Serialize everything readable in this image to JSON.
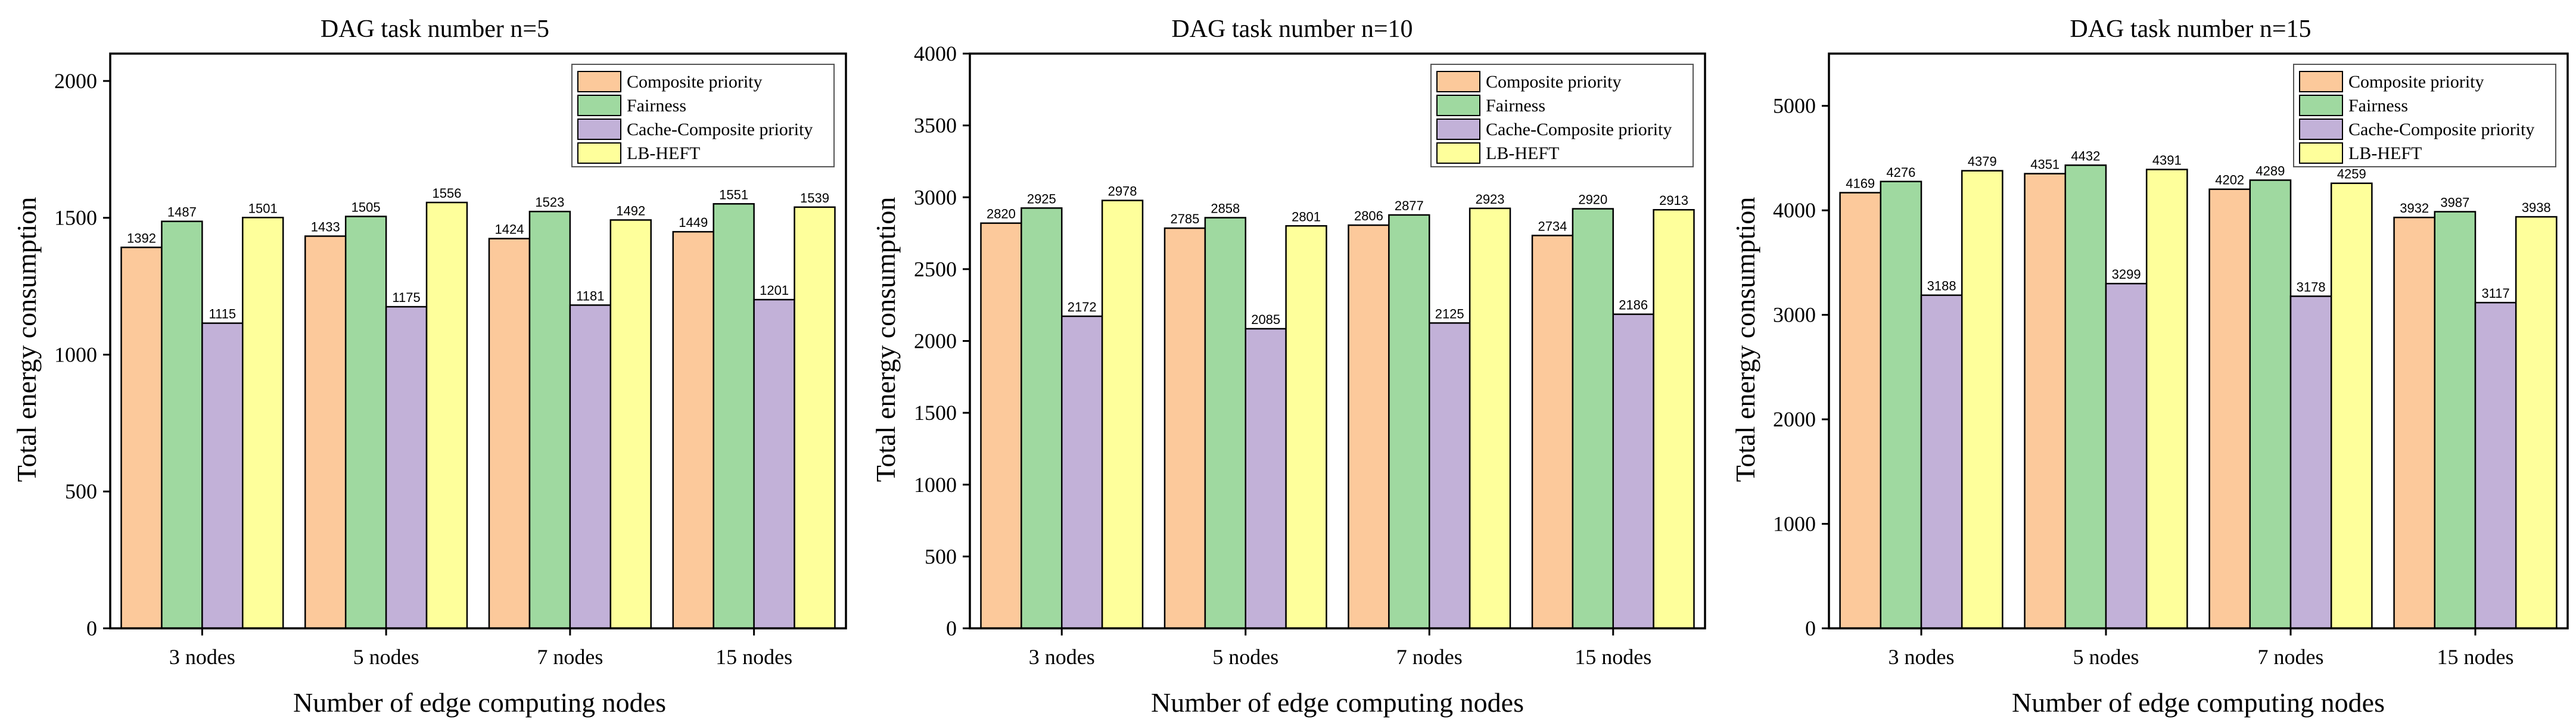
{
  "chart_data": [
    {
      "type": "bar",
      "title": "DAG task number n=5",
      "xlabel": "Number of edge computing nodes",
      "ylabel": "Total energy consumption",
      "ylim": [
        0,
        2100
      ],
      "yticks": [
        0,
        500,
        1000,
        1500,
        2000
      ],
      "categories": [
        "3 nodes",
        "5 nodes",
        "7 nodes",
        "15 nodes"
      ],
      "series": [
        {
          "name": "Composite priority",
          "values": [
            1392,
            1433,
            1424,
            1449
          ]
        },
        {
          "name": "Fairness",
          "values": [
            1487,
            1505,
            1523,
            1551
          ]
        },
        {
          "name": "Cache-Composite priority",
          "values": [
            1115,
            1175,
            1181,
            1201
          ]
        },
        {
          "name": "LB-HEFT",
          "values": [
            1501,
            1556,
            1492,
            1539
          ]
        }
      ],
      "legend": "top-right"
    },
    {
      "type": "bar",
      "title": "DAG task number n=10",
      "xlabel": "Number of edge computing nodes",
      "ylabel": "Total energy consumption",
      "ylim": [
        0,
        4000
      ],
      "yticks": [
        0,
        500,
        1000,
        1500,
        2000,
        2500,
        3000,
        3500,
        4000
      ],
      "categories": [
        "3 nodes",
        "5 nodes",
        "7 nodes",
        "15 nodes"
      ],
      "series": [
        {
          "name": "Composite priority",
          "values": [
            2820,
            2785,
            2806,
            2734
          ]
        },
        {
          "name": "Fairness",
          "values": [
            2925,
            2858,
            2877,
            2920
          ]
        },
        {
          "name": "Cache-Composite priority",
          "values": [
            2172,
            2085,
            2125,
            2186
          ]
        },
        {
          "name": "LB-HEFT",
          "values": [
            2978,
            2801,
            2923,
            2913
          ]
        }
      ],
      "legend": "top-right"
    },
    {
      "type": "bar",
      "title": "DAG task number n=15",
      "xlabel": "Number of edge computing nodes",
      "ylabel": "Total energy consumption",
      "ylim": [
        0,
        5500
      ],
      "yticks": [
        0,
        1000,
        2000,
        3000,
        4000,
        5000
      ],
      "categories": [
        "3 nodes",
        "5 nodes",
        "7 nodes",
        "15 nodes"
      ],
      "series": [
        {
          "name": "Composite priority",
          "values": [
            4169,
            4351,
            4202,
            3932
          ]
        },
        {
          "name": "Fairness",
          "values": [
            4276,
            4432,
            4289,
            3987
          ]
        },
        {
          "name": "Cache-Composite priority",
          "values": [
            3188,
            3299,
            3178,
            3117
          ]
        },
        {
          "name": "LB-HEFT",
          "values": [
            4379,
            4391,
            4259,
            3938
          ]
        }
      ],
      "legend": "top-right"
    }
  ],
  "colors": {
    "series": [
      "#fcc99b",
      "#9fd9a0",
      "#c2b1d8",
      "#feff9b"
    ],
    "stroke": "#000000"
  }
}
